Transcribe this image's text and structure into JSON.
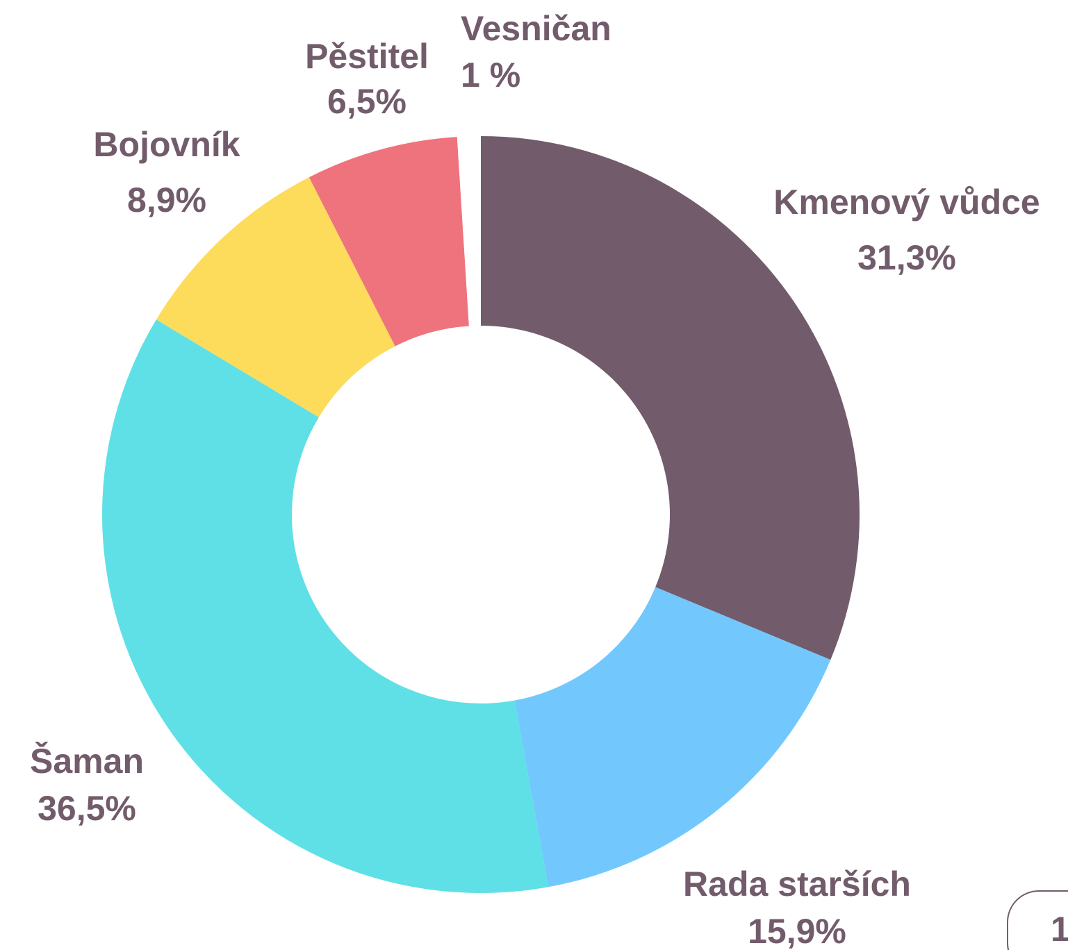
{
  "chart_data": {
    "type": "donut",
    "categories": [
      "Kmenový vůdce",
      "Rada starších",
      "Šaman",
      "Bojovník",
      "Pěstitel",
      "Vesničan"
    ],
    "values": [
      31.3,
      15.9,
      36.5,
      8.9,
      6.5,
      1
    ],
    "value_labels": [
      "31,3%",
      "15,9%",
      "36,5%",
      "8,9%",
      "6,5%",
      "1 %"
    ],
    "colors": [
      "#725c6c",
      "#72c8fd",
      "#5fe0e6",
      "#fddc5c",
      "#ef737d",
      "#ffffff"
    ]
  },
  "page_number": "1"
}
